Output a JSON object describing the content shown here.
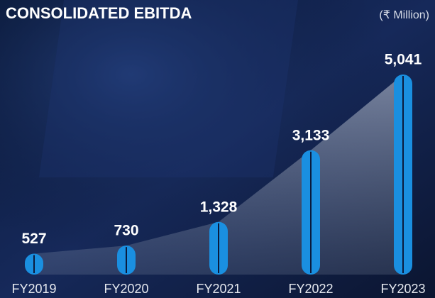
{
  "chart_data": {
    "type": "bar",
    "title": "CONSOLIDATED EBITDA",
    "subtitle": "(₹ Million)",
    "categories": [
      "FY2019",
      "FY2020",
      "FY2021",
      "FY2022",
      "FY2023"
    ],
    "values": [
      527,
      730,
      1328,
      3133,
      5041
    ],
    "value_labels": [
      "527",
      "730",
      "1,328",
      "3,133",
      "5,041"
    ],
    "color": "#1a8fe0"
  }
}
